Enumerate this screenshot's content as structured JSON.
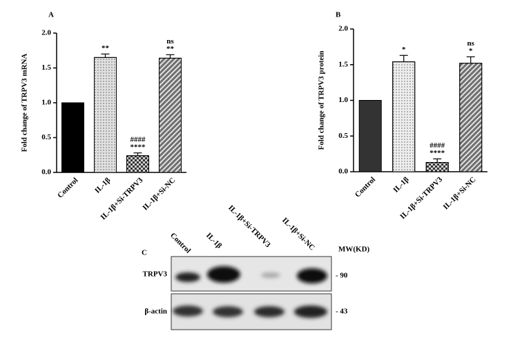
{
  "chart_data": [
    {
      "type": "bar",
      "panel": "A",
      "ylabel": "Fold change of TRPV3 mRNA",
      "categories": [
        "Control",
        "IL-1β",
        "IL-1β+Si-TRPV3",
        "IL-1β+Si-NC"
      ],
      "values": [
        1.0,
        1.65,
        0.24,
        1.64
      ],
      "errors": [
        0,
        0.05,
        0.04,
        0.05
      ],
      "colors": [
        "#000000",
        "#e0e0e0",
        "#d0d0d0",
        "#6e6e6e"
      ],
      "annotations": [
        [],
        [
          "**"
        ],
        [
          "####",
          "****"
        ],
        [
          "ns",
          "**"
        ]
      ],
      "ylim": [
        0,
        2
      ],
      "yticks": [
        {
          "value": 0,
          "label": "0.0"
        },
        0.5,
        {
          "value": 1,
          "label": "1.0"
        },
        1.5,
        {
          "value": 2,
          "label": "2.0"
        }
      ]
    },
    {
      "type": "bar",
      "panel": "B",
      "ylabel": "Fold change of TRPV3 protein",
      "categories": [
        "Control",
        "IL-1β",
        "IL-1β+Si-TRPV3",
        "IL-1β+Si-NC"
      ],
      "values": [
        1.0,
        1.54,
        0.13,
        1.52
      ],
      "errors": [
        0,
        0.09,
        0.05,
        0.09
      ],
      "colors": [
        "#333333",
        "#eeeeee",
        "#d0d0d0",
        "#6e6e6e"
      ],
      "annotations": [
        [],
        [
          "*"
        ],
        [
          "####",
          "****"
        ],
        [
          "ns",
          "*"
        ]
      ],
      "ylim": [
        0,
        2
      ],
      "yticks": [
        {
          "value": 0,
          "label": "0.0"
        },
        0.5,
        {
          "value": 1,
          "label": "1.0"
        },
        1.5,
        {
          "value": 2,
          "label": "2.0"
        }
      ]
    }
  ],
  "blot": {
    "panel": "C",
    "lanes": [
      "Control",
      "IL-1β",
      "IL-1β+Si-TRPV3",
      "IL-1β+Si-NC"
    ],
    "mw_header": "MW(KD)",
    "rows": [
      {
        "name": "TRPV3",
        "mw": "- 90"
      },
      {
        "name": "β-actin",
        "mw": "- 43"
      }
    ]
  }
}
